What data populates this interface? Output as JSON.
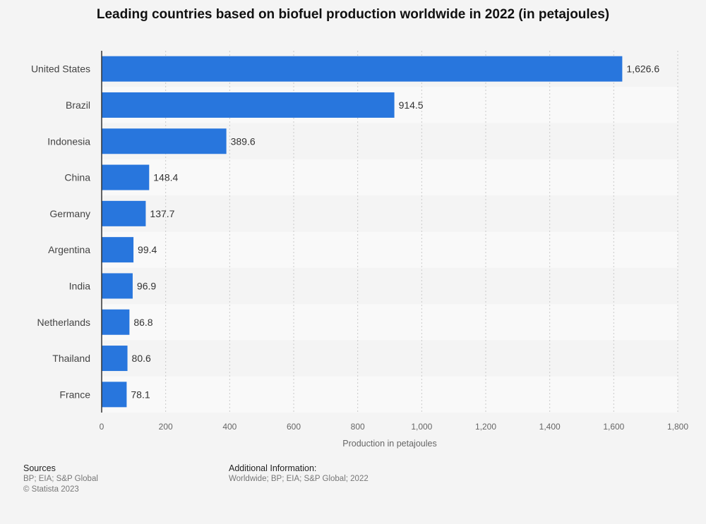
{
  "title": "Leading countries based on biofuel production worldwide in 2022 (in petajoules)",
  "chart_data": {
    "type": "bar",
    "orientation": "horizontal",
    "title": "Leading countries based on biofuel production worldwide in 2022 (in petajoules)",
    "categories": [
      "United States",
      "Brazil",
      "Indonesia",
      "China",
      "Germany",
      "Argentina",
      "India",
      "Netherlands",
      "Thailand",
      "France"
    ],
    "values": [
      1626.6,
      914.5,
      389.6,
      148.4,
      137.7,
      99.4,
      96.9,
      86.8,
      80.6,
      78.1
    ],
    "value_labels": [
      "1,626.6",
      "914.5",
      "389.6",
      "148.4",
      "137.7",
      "99.4",
      "96.9",
      "86.8",
      "80.6",
      "78.1"
    ],
    "xlabel": "Production in petajoules",
    "ylabel": "",
    "xlim": [
      0,
      1800
    ],
    "xticks": [
      0,
      200,
      400,
      600,
      800,
      1000,
      1200,
      1400,
      1600,
      1800
    ],
    "xtick_labels": [
      "0",
      "200",
      "400",
      "600",
      "800",
      "1,000",
      "1,200",
      "1,400",
      "1,600",
      "1,800"
    ],
    "grid": true,
    "bar_color": "#2876dd"
  },
  "footer": {
    "sources_heading": "Sources",
    "sources_line1": "BP; EIA; S&P Global",
    "sources_line2": "© Statista 2023",
    "additional_heading": "Additional Information:",
    "additional_text": "Worldwide; BP; EIA; S&P Global; 2022"
  }
}
